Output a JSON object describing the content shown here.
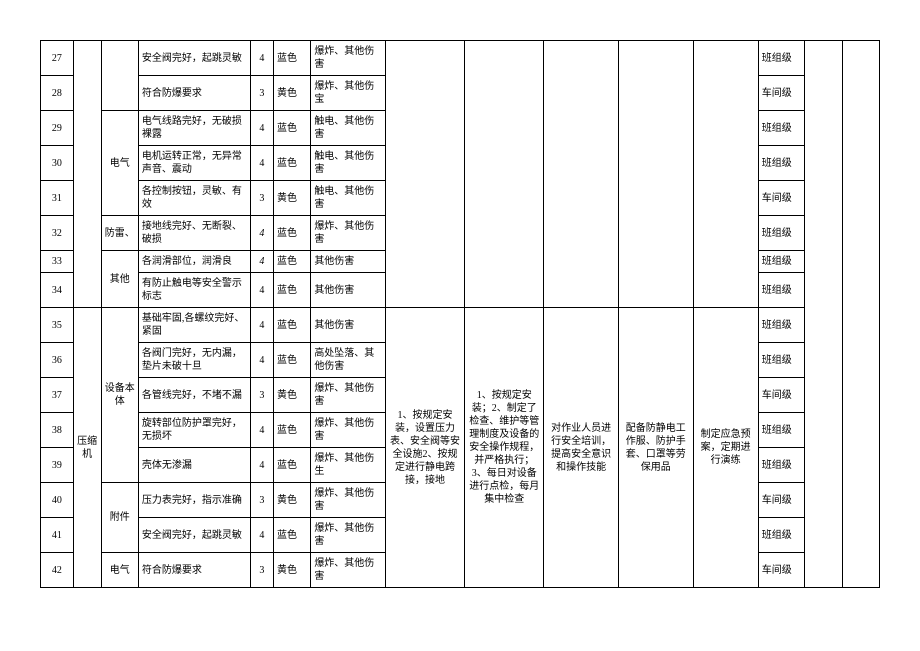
{
  "merged": {
    "equipment_35_42": "压缩机",
    "cat_29_31": "电气",
    "cat_32": "防雷、",
    "cat_33_34": "其他",
    "cat_35_39": "设备本体",
    "cat_40_41": "附件",
    "cat_42": "电气",
    "m1_35_42": "1、按规定安装，设置压力表、安全阀等安全设施2、按规定进行静电跨接，接地",
    "m2_35_42": "1、按规定安装；2、制定了检查、维护等管理制度及设备的安全操作规程，并严格执行；3、每日对设备进行点检，每月集中检查",
    "m3_35_42": "对作业人员进行安全培训，提高安全意识和操作技能",
    "m4_35_42": "配备防静电工作服、防护手套、口罩等劳保用品",
    "m5_35_42": "制定应急预案，定期进行演练"
  },
  "rows": [
    {
      "n": "27",
      "desc": "安全阀完好，起跳灵敏",
      "val": "4",
      "color": "蓝色",
      "haz": "爆炸、其他伤害",
      "level": "班组级"
    },
    {
      "n": "28",
      "desc": "符合防爆要求",
      "val": "3",
      "color": "黄色",
      "haz": "爆炸、其他伤宝",
      "level": "车间级"
    },
    {
      "n": "29",
      "desc": "电气线路完好，无破损裸露",
      "val": "4",
      "color": "蓝色",
      "haz": "触电、其他伤害",
      "level": "班组级"
    },
    {
      "n": "30",
      "desc": "电机运转正常，无异常声音、震动",
      "val": "4",
      "color": "蓝色",
      "haz": "触电、其他伤害",
      "level": "班组级"
    },
    {
      "n": "31",
      "desc": "各控制按钮，灵敏、有效",
      "val": "3",
      "color": "黄色",
      "haz": "触电、其他伤害",
      "level": "车间级"
    },
    {
      "n": "32",
      "desc": "接地线完好、无断裂、破损",
      "val": "4",
      "color": "蓝色",
      "haz": "爆炸、其他伤害",
      "level": "班组级",
      "valItalic": true
    },
    {
      "n": "33",
      "desc": "各润滑部位，润滑良",
      "val": "4",
      "color": "蓝色",
      "haz": "其他伤害",
      "level": "班组级",
      "valItalic": true
    },
    {
      "n": "34",
      "desc": "有防止触电等安全警示标志",
      "val": "4",
      "color": "蓝色",
      "haz": "其他伤害",
      "level": "班组级"
    },
    {
      "n": "35",
      "desc": "基础牢固,各螺纹完好、紧固",
      "val": "4",
      "color": "蓝色",
      "haz": "其他伤害",
      "level": "班组级"
    },
    {
      "n": "36",
      "desc": "各阀门完好，无内漏，垫片未破十旦",
      "val": "4",
      "color": "蓝色",
      "haz": "高处坠落、其他伤害",
      "level": "班组级"
    },
    {
      "n": "37",
      "desc": "各管线完好，不堵不漏",
      "val": "3",
      "color": "黄色",
      "haz": "爆炸、其他伤害",
      "level": "车间级"
    },
    {
      "n": "38",
      "desc": "旋转部位防护罩完好，无损坏",
      "val": "4",
      "color": "蓝色",
      "haz": "爆炸、其他伤害",
      "level": "班组级"
    },
    {
      "n": "39",
      "desc": "壳体无渗漏",
      "val": "4",
      "color": "蓝色",
      "haz": "爆炸、其他伤生",
      "level": "班组级"
    },
    {
      "n": "40",
      "desc": "压力表完好，指示准确",
      "val": "3",
      "color": "黄色",
      "haz": "爆炸、其他伤害",
      "level": "车间级"
    },
    {
      "n": "41",
      "desc": "安全阀完好，起跳灵敏",
      "val": "4",
      "color": "蓝色",
      "haz": "爆炸、其他伤害",
      "level": "班组级"
    },
    {
      "n": "42",
      "desc": "符合防爆要求",
      "val": "3",
      "color": "黄色",
      "haz": "爆炸、其他伤害",
      "level": "车间级"
    }
  ]
}
